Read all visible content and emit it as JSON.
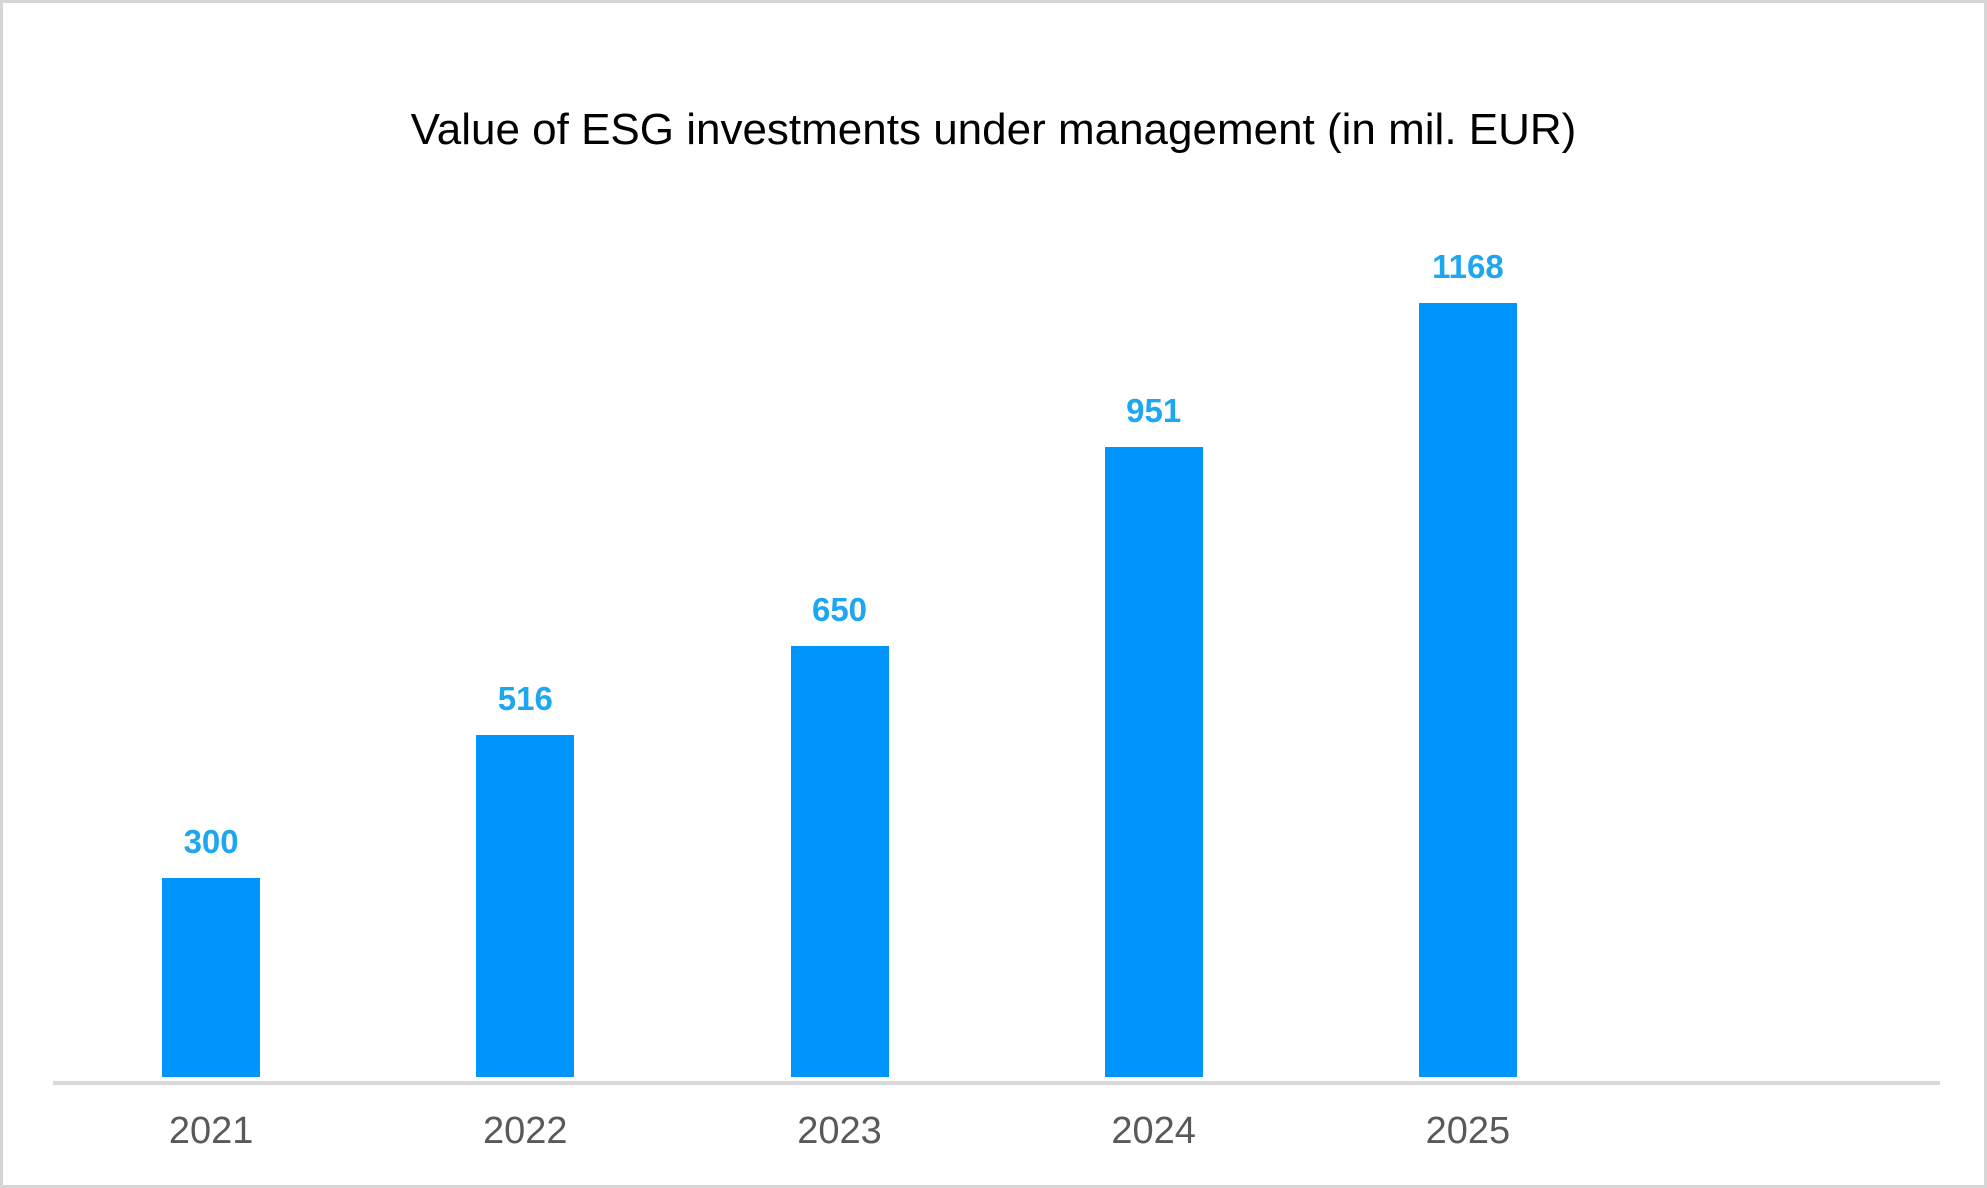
{
  "chart_data": {
    "type": "bar",
    "title": "Value of ESG investments under management (in mil. EUR)",
    "categories": [
      "2021",
      "2022",
      "2023",
      "2024",
      "2025"
    ],
    "values": [
      300,
      516,
      650,
      951,
      1168
    ],
    "xlabel": "",
    "ylabel": "",
    "ylim": [
      0,
      1200
    ],
    "grid": false,
    "legend": false,
    "value_labels_shown": true,
    "colors": {
      "bar_fill": "#0095FA",
      "value_label_text": "#1EA6F0",
      "axis_label_text": "#595959",
      "axis_line": "#D9D9D9",
      "title_text": "#000000",
      "background": "#FFFFFF",
      "frame_border": "#D6D6D6"
    }
  }
}
